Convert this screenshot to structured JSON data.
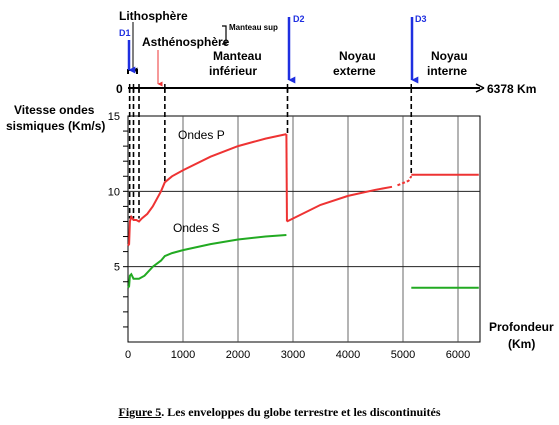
{
  "chart_data": {
    "type": "line",
    "ylabel": [
      "Vitesse ondes",
      "sismiques (Km/s)"
    ],
    "xlabel": [
      "Profondeur",
      "(Km)"
    ],
    "xlim": [
      0,
      6400
    ],
    "ylim": [
      0,
      15
    ],
    "x_ticks": [
      "0",
      "1000",
      "2000",
      "3000",
      "4000",
      "5000",
      "6000"
    ],
    "x_tick_values": [
      0,
      1000,
      2000,
      3000,
      4000,
      5000,
      6000
    ],
    "y_ticks": [
      "5",
      "10",
      "15"
    ],
    "y_tick_values": [
      5,
      10,
      15
    ],
    "grid": "vertical lines every 1000 km; horizontal lines at 5 and 10 km/s",
    "series": [
      {
        "name": "Ondes P",
        "color": "#ee3333",
        "segments": [
          [
            [
              0,
              6.4
            ],
            [
              20,
              6.5
            ],
            [
              35,
              8.0
            ],
            [
              60,
              8.3
            ],
            [
              100,
              8.1
            ],
            [
              150,
              8.1
            ],
            [
              200,
              8.0
            ],
            [
              250,
              8.2
            ],
            [
              350,
              8.5
            ],
            [
              450,
              9.0
            ],
            [
              600,
              10.0
            ],
            [
              670,
              10.6
            ],
            [
              800,
              11.0
            ],
            [
              1000,
              11.4
            ],
            [
              1500,
              12.3
            ],
            [
              2000,
              13.0
            ],
            [
              2500,
              13.5
            ],
            [
              2880,
              13.8
            ]
          ],
          [
            [
              2890,
              8.0
            ],
            [
              3000,
              8.2
            ],
            [
              3500,
              9.1
            ],
            [
              4000,
              9.7
            ],
            [
              4500,
              10.1
            ],
            [
              4800,
              10.3
            ]
          ],
          [
            [
              4900,
              10.4
            ],
            [
              5100,
              10.7
            ],
            [
              5150,
              11.0
            ]
          ],
          [
            [
              5150,
              11.1
            ],
            [
              6378,
              11.1
            ]
          ]
        ]
      },
      {
        "name": "Ondes S",
        "color": "#22aa22",
        "segments": [
          [
            [
              0,
              3.6
            ],
            [
              20,
              3.7
            ],
            [
              35,
              4.4
            ],
            [
              60,
              4.5
            ],
            [
              100,
              4.2
            ],
            [
              200,
              4.2
            ],
            [
              300,
              4.4
            ],
            [
              450,
              5.0
            ],
            [
              600,
              5.4
            ],
            [
              670,
              5.7
            ],
            [
              800,
              5.9
            ],
            [
              1000,
              6.1
            ],
            [
              1500,
              6.5
            ],
            [
              2000,
              6.8
            ],
            [
              2500,
              7.0
            ],
            [
              2880,
              7.1
            ]
          ],
          [
            [
              5150,
              3.6
            ],
            [
              6378,
              3.6
            ]
          ]
        ]
      }
    ]
  },
  "earth_bar": {
    "zero": "0",
    "end": "6378 Km",
    "labels": {
      "lithosphere": "Lithosphère",
      "asthenosphere": "Asthénosphère",
      "manteau_sup": "Manteau sup",
      "manteau_inf_1": "Manteau",
      "manteau_inf_2": "inférieur",
      "noyau_ext_1": "Noyau",
      "noyau_ext_2": "externe",
      "noyau_int_1": "Noyau",
      "noyau_int_2": "interne"
    },
    "discontinuities": [
      {
        "name": "D1",
        "depth": 30
      },
      {
        "name": "D2",
        "depth": 2900
      },
      {
        "name": "D3",
        "depth": 5150
      }
    ],
    "boundary_depths": [
      100,
      200,
      670
    ],
    "arrow_color": "#1f2fe0",
    "asthenosphere_arrow_color": "#ee3333"
  },
  "caption": {
    "figure_number": "Figure 5",
    "text": ". Les enveloppes du globe terrestre  et les discontinuités"
  }
}
